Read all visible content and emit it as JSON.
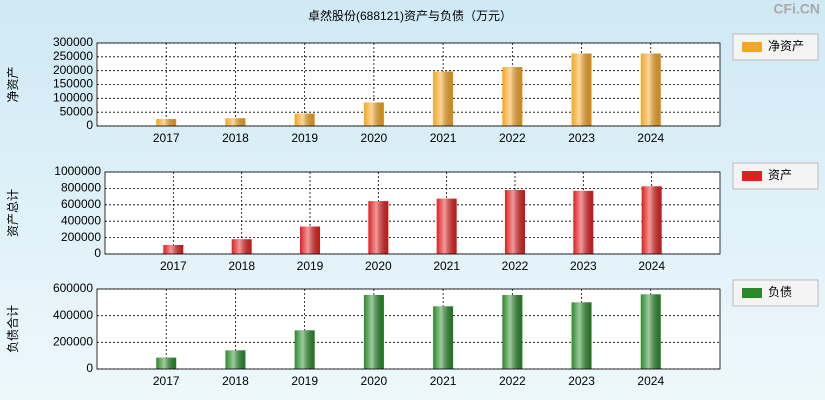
{
  "title": "卓然股份(688121)资产与负债（万元）",
  "watermark": "CFi.CN",
  "chart_data": [
    {
      "type": "bar",
      "y_label": "净资产",
      "categories": [
        "2017",
        "2018",
        "2019",
        "2020",
        "2021",
        "2022",
        "2023",
        "2024"
      ],
      "series": [
        {
          "name": "净资产",
          "color": "#f5a623",
          "values": [
            25000,
            28000,
            45000,
            85000,
            197000,
            213000,
            262000,
            262000
          ]
        }
      ],
      "ylim": [
        0,
        300000
      ],
      "yticks": [
        0,
        50000,
        100000,
        150000,
        200000,
        250000,
        300000
      ],
      "grid": true
    },
    {
      "type": "bar",
      "y_label": "资产总计",
      "categories": [
        "2017",
        "2018",
        "2019",
        "2020",
        "2021",
        "2022",
        "2023",
        "2024"
      ],
      "series": [
        {
          "name": "资产",
          "color": "#e02020",
          "values": [
            110000,
            180000,
            335000,
            645000,
            675000,
            780000,
            770000,
            825000
          ]
        }
      ],
      "ylim": [
        0,
        1000000
      ],
      "yticks": [
        0,
        200000,
        400000,
        600000,
        800000,
        1000000
      ],
      "grid": true
    },
    {
      "type": "bar",
      "y_label": "负债合计",
      "categories": [
        "2017",
        "2018",
        "2019",
        "2020",
        "2021",
        "2022",
        "2023",
        "2024"
      ],
      "series": [
        {
          "name": "负债",
          "color": "#2a8a2a",
          "values": [
            85000,
            140000,
            290000,
            555000,
            470000,
            555000,
            500000,
            560000
          ]
        }
      ],
      "ylim": [
        0,
        600000
      ],
      "yticks": [
        0,
        200000,
        400000,
        600000
      ],
      "grid": true
    }
  ]
}
